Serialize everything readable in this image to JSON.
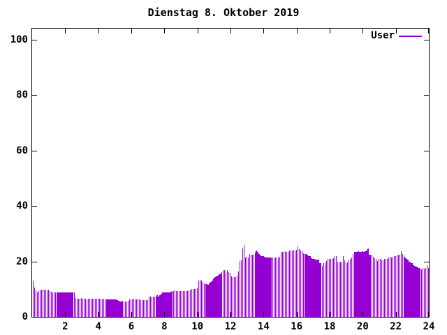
{
  "title": "Dienstag 8. Oktober 2019",
  "legend": {
    "label": "User"
  },
  "colors": {
    "series": "#9400D3",
    "axis": "#000000",
    "background": "#ffffff"
  },
  "chart_data": {
    "type": "bar",
    "title": "Dienstag 8. Oktober 2019",
    "series_name": "User",
    "x_unit": "hour-of-day",
    "x_start_hour": 0,
    "x_step_minutes": 5,
    "xlim": [
      0,
      24
    ],
    "ylim": [
      0,
      104
    ],
    "x_ticks": [
      2,
      4,
      6,
      8,
      10,
      12,
      14,
      16,
      18,
      20,
      22,
      24
    ],
    "y_ticks": [
      0,
      20,
      40,
      60,
      80,
      100
    ],
    "grid": false,
    "legend_position": "top-right-inside",
    "bar_color": "#9400D3",
    "values": [
      13.0,
      10.5,
      9.6,
      8.8,
      9.3,
      9.5,
      9.8,
      9.8,
      9.8,
      9.8,
      9.6,
      9.8,
      9.3,
      9.0,
      8.8,
      9.0,
      8.8,
      8.7,
      8.8,
      8.8,
      8.7,
      8.8,
      8.8,
      8.7,
      8.8,
      8.8,
      8.7,
      8.8,
      8.8,
      8.7,
      8.8,
      6.8,
      6.5,
      6.6,
      6.5,
      6.7,
      6.5,
      6.6,
      6.5,
      6.4,
      6.5,
      6.6,
      6.5,
      6.5,
      6.4,
      6.5,
      6.5,
      6.6,
      6.5,
      6.5,
      6.4,
      6.5,
      6.5,
      6.3,
      6.2,
      6.3,
      6.2,
      6.2,
      6.3,
      6.2,
      6.2,
      6.1,
      5.8,
      5.6,
      5.6,
      5.7,
      5.6,
      5.5,
      5.6,
      5.8,
      6.2,
      6.4,
      6.4,
      6.5,
      6.4,
      6.4,
      6.5,
      6.4,
      6.1,
      6.0,
      6.0,
      6.1,
      6.0,
      6.0,
      7.2,
      7.3,
      7.2,
      7.3,
      7.2,
      7.3,
      7.8,
      7.4,
      7.9,
      8.2,
      8.7,
      8.8,
      8.8,
      8.7,
      8.8,
      8.9,
      9.0,
      9.2,
      9.3,
      9.5,
      9.3,
      9.2,
      9.3,
      9.4,
      9.2,
      9.3,
      9.2,
      9.3,
      9.4,
      9.5,
      9.6,
      10.0,
      10.1,
      10.0,
      10.2,
      10.4,
      13.2,
      13.3,
      13.0,
      12.6,
      12.2,
      11.9,
      11.8,
      11.5,
      12.0,
      12.6,
      13.2,
      13.8,
      14.4,
      14.7,
      14.9,
      15.3,
      15.5,
      16.0,
      16.8,
      16.9,
      16.4,
      16.8,
      16.2,
      15.9,
      14.7,
      14.4,
      14.3,
      14.4,
      14.9,
      16.4,
      20.1,
      20.3,
      24.7,
      25.8,
      21.4,
      21.6,
      21.4,
      22.6,
      22.5,
      22.5,
      22.5,
      23.1,
      23.9,
      23.5,
      22.6,
      22.2,
      22.0,
      21.8,
      21.6,
      21.4,
      21.5,
      21.4,
      21.3,
      21.4,
      21.5,
      21.4,
      21.3,
      21.4,
      21.5,
      21.6,
      23.3,
      23.5,
      23.4,
      23.6,
      23.5,
      23.4,
      23.8,
      24.0,
      23.9,
      24.1,
      24.0,
      24.2,
      25.4,
      24.3,
      24.0,
      23.8,
      23.0,
      22.6,
      22.6,
      22.4,
      22.0,
      21.8,
      21.2,
      20.9,
      20.8,
      20.6,
      20.7,
      20.6,
      19.3,
      19.4,
      18.4,
      19.3,
      19.4,
      20.2,
      20.8,
      21.0,
      21.0,
      20.9,
      21.1,
      21.9,
      21.8,
      19.8,
      19.7,
      19.9,
      19.6,
      21.9,
      20.4,
      19.5,
      19.6,
      20.4,
      20.9,
      21.5,
      22.6,
      23.5,
      23.3,
      23.4,
      23.6,
      23.5,
      23.4,
      23.6,
      23.5,
      23.7,
      24.0,
      24.7,
      22.4,
      22.3,
      22.4,
      21.6,
      21.2,
      20.9,
      20.1,
      20.9,
      21.0,
      20.7,
      20.5,
      20.8,
      21.0,
      20.9,
      21.4,
      21.6,
      21.5,
      21.7,
      21.9,
      22.0,
      22.2,
      22.4,
      22.3,
      23.7,
      22.6,
      22.2,
      21.5,
      21.0,
      20.6,
      19.9,
      19.6,
      19.3,
      18.6,
      18.4,
      18.1,
      17.8,
      17.6,
      17.4,
      17.2,
      17.5,
      17.3,
      17.6,
      18.6,
      17.5
    ]
  }
}
